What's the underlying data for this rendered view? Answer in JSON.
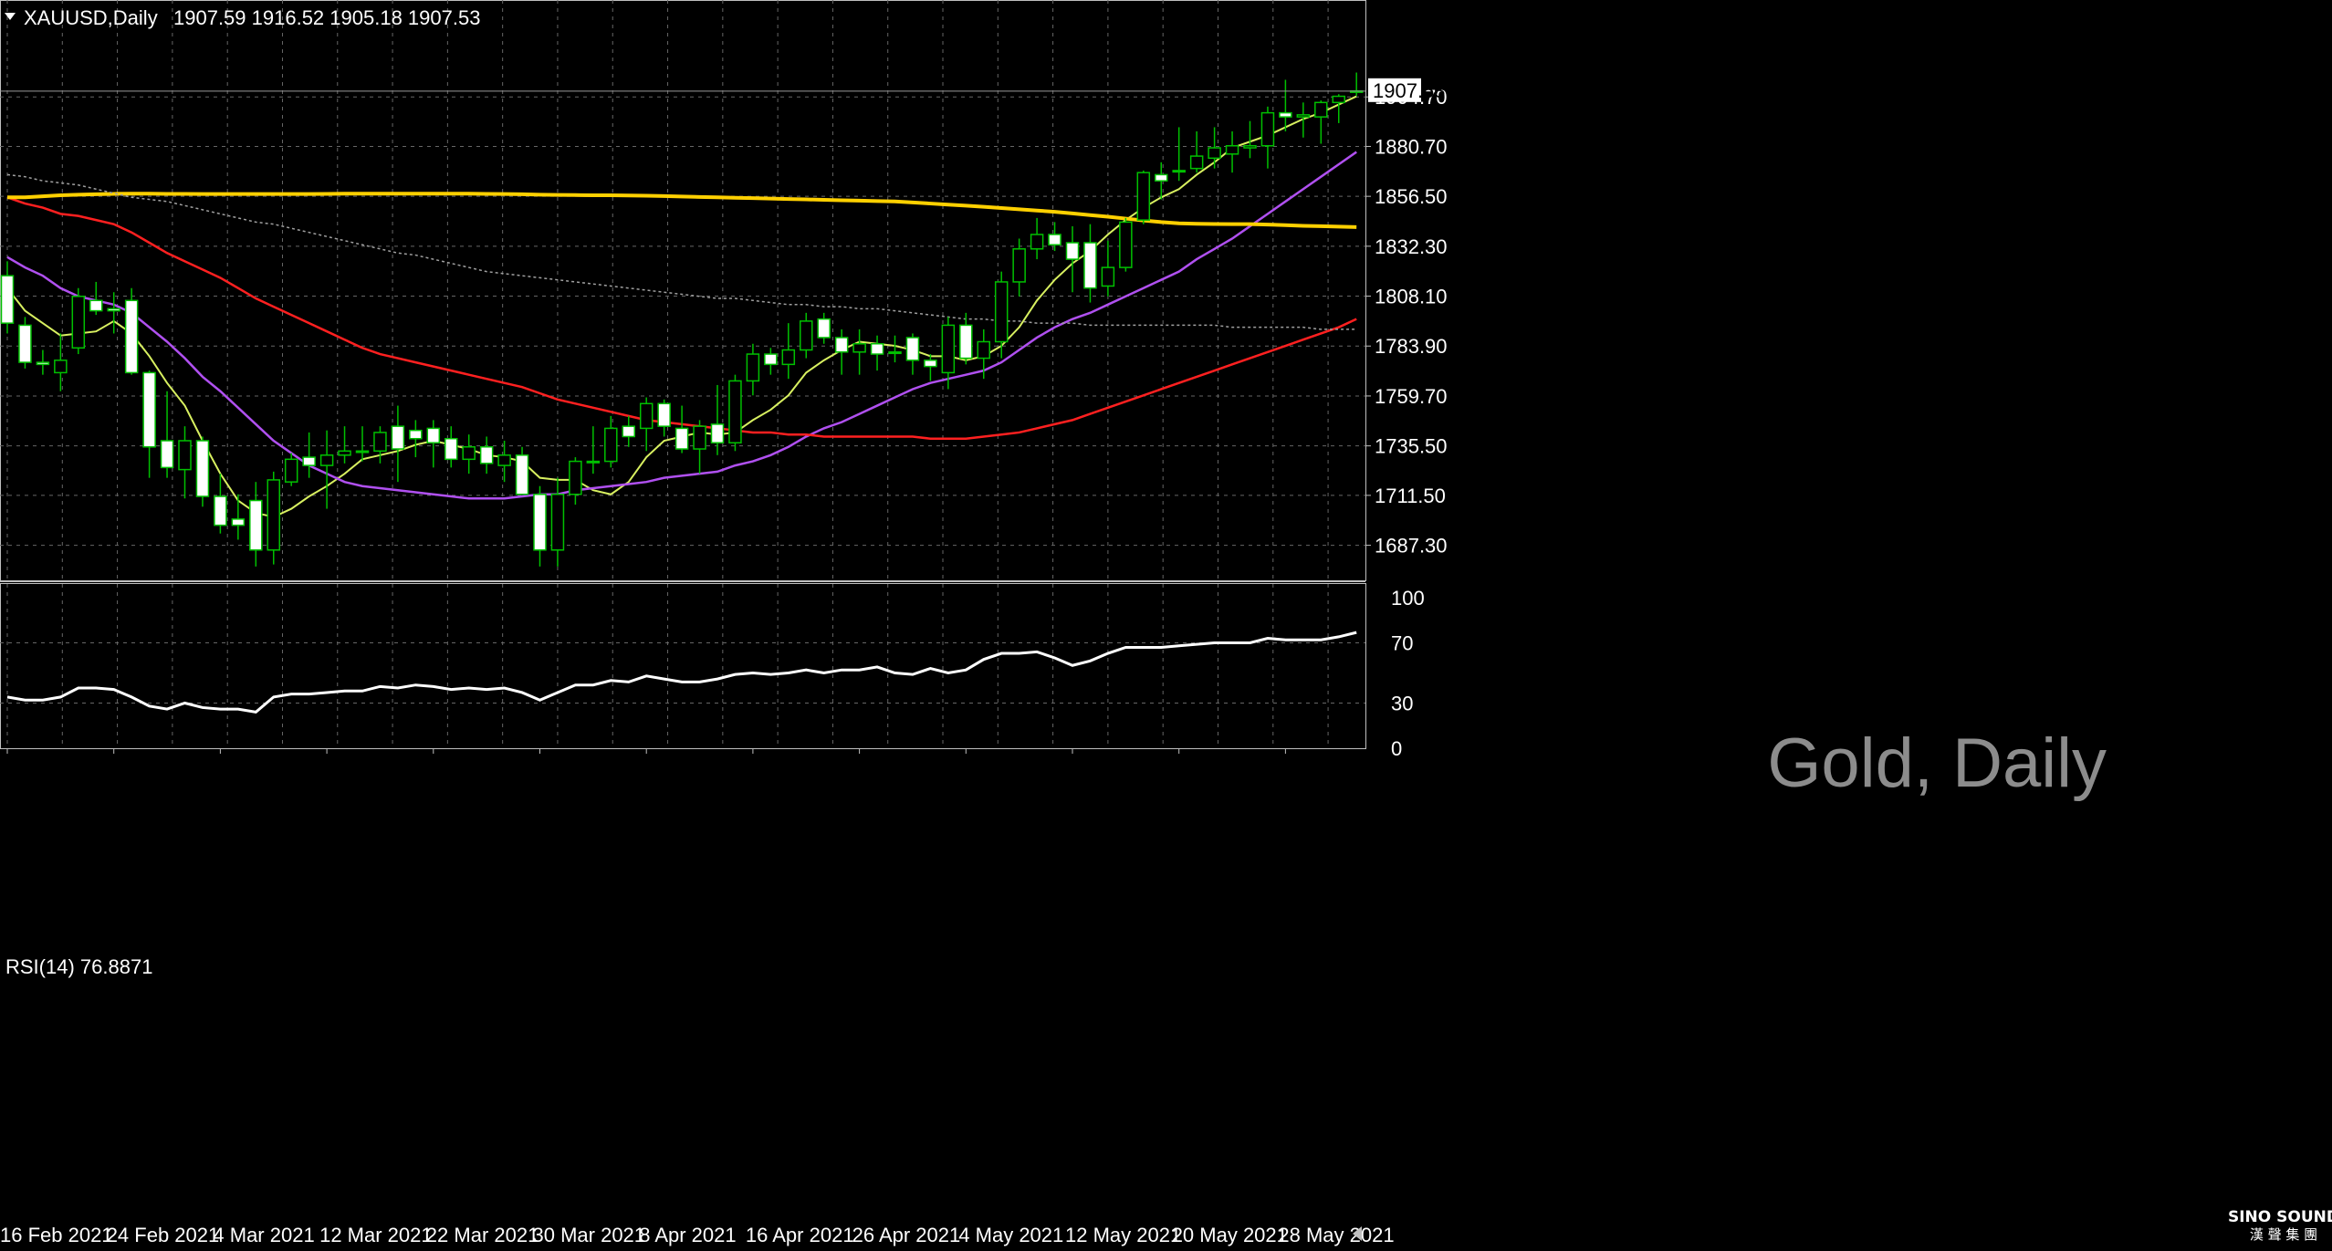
{
  "header": {
    "symbol": "XAUUSD,Daily",
    "ohlc": "1907.59 1916.52 1905.18 1907.53",
    "watermark": "Gold, Daily"
  },
  "rsi_panel": {
    "label": "RSI(14) 76.8871"
  },
  "logo": {
    "line1": "SINO SOUND",
    "line2": "漢 聲 集 團"
  },
  "colors": {
    "background": "#000000",
    "grid": "#666666",
    "bull_candle": "#000000",
    "bear_candle": "#ffffff",
    "candle_outline": "#00c000",
    "ma_5": "#d8f060",
    "ma_20": "#b050f0",
    "ma_50": "#ff2020",
    "ma_100": "#ffd000",
    "ma_200": "#a0a0a0",
    "rsi_line": "#ffffff"
  },
  "chart_data": [
    {
      "type": "candlestick",
      "title": "XAUUSD,Daily",
      "current_price": 1907.53,
      "ylim": [
        1670.3,
        1927.8
      ],
      "y_ticks": [
        1687.3,
        1711.5,
        1735.5,
        1759.7,
        1783.9,
        1808.1,
        1832.3,
        1856.5,
        1880.7,
        1904.7
      ],
      "y_tick_labels": [
        "1687.30",
        "1711.50",
        "1735.50",
        "1759.70",
        "1783.90",
        "1808.10",
        "1832.30",
        "1856.50",
        "1880.70",
        "1904.70"
      ],
      "x_labels": [
        "16 Feb 2021",
        "24 Feb 2021",
        "4 Mar 2021",
        "12 Mar 2021",
        "22 Mar 2021",
        "30 Mar 2021",
        "8 Apr 2021",
        "16 Apr 2021",
        "26 Apr 2021",
        "4 May 2021",
        "12 May 2021",
        "20 May 2021",
        "28 May 2021"
      ],
      "x_label_index": [
        0,
        6,
        12,
        18,
        24,
        30,
        36,
        42,
        48,
        54,
        60,
        66,
        72
      ],
      "ohlc": [
        {
          "o": 1818,
          "h": 1825,
          "l": 1790,
          "c": 1795
        },
        {
          "o": 1794,
          "h": 1798,
          "l": 1773,
          "c": 1776
        },
        {
          "o": 1776,
          "h": 1782,
          "l": 1770,
          "c": 1775
        },
        {
          "o": 1771,
          "h": 1790,
          "l": 1762,
          "c": 1777
        },
        {
          "o": 1783,
          "h": 1812,
          "l": 1780,
          "c": 1808
        },
        {
          "o": 1806,
          "h": 1815,
          "l": 1799,
          "c": 1801
        },
        {
          "o": 1802,
          "h": 1810,
          "l": 1790,
          "c": 1801
        },
        {
          "o": 1806,
          "h": 1812,
          "l": 1770,
          "c": 1771
        },
        {
          "o": 1771,
          "h": 1772,
          "l": 1720,
          "c": 1735
        },
        {
          "o": 1738,
          "h": 1762,
          "l": 1720,
          "c": 1725
        },
        {
          "o": 1724,
          "h": 1745,
          "l": 1710,
          "c": 1738
        },
        {
          "o": 1738,
          "h": 1740,
          "l": 1706,
          "c": 1711
        },
        {
          "o": 1711,
          "h": 1722,
          "l": 1693,
          "c": 1697
        },
        {
          "o": 1700,
          "h": 1712,
          "l": 1690,
          "c": 1697
        },
        {
          "o": 1709,
          "h": 1718,
          "l": 1677,
          "c": 1685
        },
        {
          "o": 1685,
          "h": 1723,
          "l": 1678,
          "c": 1719
        },
        {
          "o": 1718,
          "h": 1732,
          "l": 1716,
          "c": 1729
        },
        {
          "o": 1730,
          "h": 1742,
          "l": 1720,
          "c": 1726
        },
        {
          "o": 1726,
          "h": 1743,
          "l": 1705,
          "c": 1731
        },
        {
          "o": 1731,
          "h": 1745,
          "l": 1727,
          "c": 1733
        },
        {
          "o": 1733,
          "h": 1745,
          "l": 1728,
          "c": 1733
        },
        {
          "o": 1733,
          "h": 1745,
          "l": 1727,
          "c": 1742
        },
        {
          "o": 1745,
          "h": 1755,
          "l": 1718,
          "c": 1734
        },
        {
          "o": 1743,
          "h": 1748,
          "l": 1730,
          "c": 1739
        },
        {
          "o": 1744,
          "h": 1748,
          "l": 1725,
          "c": 1737
        },
        {
          "o": 1739,
          "h": 1745,
          "l": 1725,
          "c": 1729
        },
        {
          "o": 1729,
          "h": 1741,
          "l": 1722,
          "c": 1735
        },
        {
          "o": 1735,
          "h": 1740,
          "l": 1722,
          "c": 1727
        },
        {
          "o": 1726,
          "h": 1738,
          "l": 1718,
          "c": 1731
        },
        {
          "o": 1731,
          "h": 1735,
          "l": 1712,
          "c": 1712
        },
        {
          "o": 1712,
          "h": 1716,
          "l": 1677,
          "c": 1685
        },
        {
          "o": 1685,
          "h": 1720,
          "l": 1677,
          "c": 1712
        },
        {
          "o": 1712,
          "h": 1730,
          "l": 1707,
          "c": 1728
        },
        {
          "o": 1728,
          "h": 1745,
          "l": 1722,
          "c": 1728
        },
        {
          "o": 1728,
          "h": 1750,
          "l": 1725,
          "c": 1744
        },
        {
          "o": 1745,
          "h": 1750,
          "l": 1735,
          "c": 1740
        },
        {
          "o": 1744,
          "h": 1759,
          "l": 1733,
          "c": 1756
        },
        {
          "o": 1756,
          "h": 1758,
          "l": 1740,
          "c": 1745
        },
        {
          "o": 1744,
          "h": 1755,
          "l": 1732,
          "c": 1734
        },
        {
          "o": 1734,
          "h": 1748,
          "l": 1722,
          "c": 1745
        },
        {
          "o": 1746,
          "h": 1765,
          "l": 1731,
          "c": 1737
        },
        {
          "o": 1737,
          "h": 1770,
          "l": 1733,
          "c": 1767
        },
        {
          "o": 1767,
          "h": 1785,
          "l": 1760,
          "c": 1780
        },
        {
          "o": 1780,
          "h": 1783,
          "l": 1770,
          "c": 1775
        },
        {
          "o": 1775,
          "h": 1795,
          "l": 1768,
          "c": 1782
        },
        {
          "o": 1782,
          "h": 1800,
          "l": 1778,
          "c": 1796
        },
        {
          "o": 1797,
          "h": 1800,
          "l": 1785,
          "c": 1788
        },
        {
          "o": 1788,
          "h": 1792,
          "l": 1770,
          "c": 1781
        },
        {
          "o": 1781,
          "h": 1792,
          "l": 1770,
          "c": 1785
        },
        {
          "o": 1785,
          "h": 1789,
          "l": 1772,
          "c": 1780
        },
        {
          "o": 1781,
          "h": 1789,
          "l": 1776,
          "c": 1781
        },
        {
          "o": 1788,
          "h": 1790,
          "l": 1770,
          "c": 1777
        },
        {
          "o": 1777,
          "h": 1780,
          "l": 1767,
          "c": 1774
        },
        {
          "o": 1771,
          "h": 1798,
          "l": 1763,
          "c": 1794
        },
        {
          "o": 1794,
          "h": 1800,
          "l": 1775,
          "c": 1778
        },
        {
          "o": 1778,
          "h": 1792,
          "l": 1768,
          "c": 1786
        },
        {
          "o": 1786,
          "h": 1820,
          "l": 1778,
          "c": 1815
        },
        {
          "o": 1815,
          "h": 1836,
          "l": 1808,
          "c": 1831
        },
        {
          "o": 1831,
          "h": 1846,
          "l": 1826,
          "c": 1838
        },
        {
          "o": 1838,
          "h": 1844,
          "l": 1830,
          "c": 1833
        },
        {
          "o": 1834,
          "h": 1842,
          "l": 1810,
          "c": 1826
        },
        {
          "o": 1834,
          "h": 1843,
          "l": 1805,
          "c": 1812
        },
        {
          "o": 1813,
          "h": 1835,
          "l": 1808,
          "c": 1822
        },
        {
          "o": 1822,
          "h": 1846,
          "l": 1820,
          "c": 1844
        },
        {
          "o": 1845,
          "h": 1869,
          "l": 1843,
          "c": 1868
        },
        {
          "o": 1867,
          "h": 1873,
          "l": 1855,
          "c": 1864
        },
        {
          "o": 1869,
          "h": 1890,
          "l": 1864,
          "c": 1869
        },
        {
          "o": 1870,
          "h": 1888,
          "l": 1868,
          "c": 1876
        },
        {
          "o": 1875,
          "h": 1890,
          "l": 1870,
          "c": 1880
        },
        {
          "o": 1877,
          "h": 1888,
          "l": 1868,
          "c": 1881
        },
        {
          "o": 1880,
          "h": 1893,
          "l": 1875,
          "c": 1881
        },
        {
          "o": 1881,
          "h": 1900,
          "l": 1870,
          "c": 1897
        },
        {
          "o": 1897,
          "h": 1913,
          "l": 1888,
          "c": 1895
        },
        {
          "o": 1895,
          "h": 1902,
          "l": 1885,
          "c": 1896
        },
        {
          "o": 1895,
          "h": 1903,
          "l": 1882,
          "c": 1902
        },
        {
          "o": 1902,
          "h": 1906,
          "l": 1892,
          "c": 1905
        },
        {
          "o": 1907.59,
          "h": 1916.52,
          "l": 1905.18,
          "c": 1907.53
        }
      ],
      "ma_lines": [
        {
          "key": "ma_5",
          "values": [
            1812,
            1801,
            1795,
            1789,
            1790,
            1791,
            1796,
            1790,
            1779,
            1766,
            1755,
            1738,
            1722,
            1709,
            1703,
            1701,
            1705,
            1711,
            1716,
            1722,
            1729,
            1731,
            1733,
            1736,
            1738,
            1736,
            1734,
            1731,
            1730,
            1728,
            1720,
            1719,
            1719,
            1714,
            1712,
            1718,
            1730,
            1738,
            1740,
            1742,
            1741,
            1742,
            1748,
            1753,
            1760,
            1771,
            1777,
            1782,
            1786,
            1785,
            1784,
            1782,
            1779,
            1779,
            1777,
            1779,
            1784,
            1793,
            1806,
            1816,
            1824,
            1830,
            1838,
            1845,
            1851,
            1856,
            1860,
            1867,
            1873,
            1880,
            1883,
            1886,
            1890,
            1894,
            1897,
            1901,
            1905
          ]
        },
        {
          "key": "ma_20",
          "values": [
            1827,
            1822,
            1818,
            1812,
            1808,
            1806,
            1804,
            1800,
            1793,
            1786,
            1778,
            1769,
            1762,
            1754,
            1746,
            1738,
            1732,
            1726,
            1722,
            1718,
            1716,
            1715,
            1714,
            1713,
            1712,
            1711,
            1710,
            1710,
            1710,
            1711,
            1712,
            1712,
            1714,
            1715,
            1716,
            1717,
            1718,
            1720,
            1721,
            1722,
            1723,
            1726,
            1728,
            1731,
            1735,
            1740,
            1744,
            1747,
            1751,
            1755,
            1759,
            1763,
            1766,
            1768,
            1770,
            1772,
            1776,
            1782,
            1788,
            1793,
            1797,
            1800,
            1804,
            1808,
            1812,
            1816,
            1820,
            1826,
            1831,
            1836,
            1842,
            1848,
            1854,
            1860,
            1866,
            1872,
            1878
          ]
        },
        {
          "key": "ma_50",
          "values": [
            1856,
            1853,
            1851,
            1848,
            1847,
            1845,
            1843,
            1839,
            1834,
            1829,
            1825,
            1821,
            1817,
            1812,
            1807,
            1803,
            1799,
            1795,
            1791,
            1787,
            1783,
            1780,
            1778,
            1776,
            1774,
            1772,
            1770,
            1768,
            1766,
            1764,
            1761,
            1758,
            1756,
            1754,
            1752,
            1750,
            1748,
            1747,
            1746,
            1745,
            1744,
            1743,
            1742,
            1742,
            1741,
            1741,
            1740,
            1740,
            1740,
            1740,
            1740,
            1740,
            1739,
            1739,
            1739,
            1740,
            1741,
            1742,
            1744,
            1746,
            1748,
            1751,
            1754,
            1757,
            1760,
            1763,
            1766,
            1769,
            1772,
            1775,
            1778,
            1781,
            1784,
            1787,
            1790,
            1793,
            1797
          ]
        },
        {
          "key": "ma_100",
          "values": [
            1856,
            1856,
            1856.5,
            1857,
            1857.3,
            1857.5,
            1857.7,
            1857.8,
            1857.8,
            1857.7,
            1857.7,
            1857.6,
            1857.6,
            1857.6,
            1857.6,
            1857.6,
            1857.6,
            1857.6,
            1857.7,
            1857.8,
            1857.8,
            1857.8,
            1857.8,
            1857.8,
            1857.8,
            1857.8,
            1857.8,
            1857.7,
            1857.6,
            1857.5,
            1857.3,
            1857.2,
            1857.1,
            1857,
            1857,
            1856.9,
            1856.8,
            1856.6,
            1856.4,
            1856.2,
            1856,
            1855.8,
            1855.6,
            1855.4,
            1855.2,
            1855,
            1854.8,
            1854.6,
            1854.4,
            1854.2,
            1854,
            1853.5,
            1853,
            1852.5,
            1852,
            1851.4,
            1850.8,
            1850.2,
            1849.6,
            1849,
            1848.2,
            1847.4,
            1846.6,
            1845.7,
            1844.8,
            1844,
            1843.4,
            1843.2,
            1843.1,
            1843,
            1843,
            1842.8,
            1842.5,
            1842.2,
            1842,
            1841.8,
            1841.6
          ]
        },
        {
          "key": "ma_200",
          "values": [
            1867,
            1866,
            1864,
            1863,
            1862,
            1860,
            1858,
            1856,
            1855,
            1854,
            1852,
            1850,
            1848,
            1846,
            1844,
            1843,
            1841,
            1839,
            1837,
            1835,
            1833,
            1831,
            1829,
            1828,
            1826,
            1824,
            1822,
            1820,
            1819,
            1818,
            1817,
            1816,
            1815,
            1814,
            1813,
            1812,
            1811,
            1810,
            1809,
            1808,
            1807,
            1807,
            1806,
            1805,
            1804,
            1804,
            1803,
            1803,
            1802,
            1802,
            1801,
            1800,
            1799,
            1798,
            1797,
            1797,
            1796,
            1796,
            1795,
            1795,
            1795,
            1794,
            1794,
            1794,
            1794,
            1794,
            1794,
            1794,
            1794,
            1793,
            1793,
            1793,
            1793,
            1793,
            1792,
            1792,
            1792
          ]
        }
      ]
    },
    {
      "type": "line",
      "title": "RSI(14) 76.8871",
      "ylim": [
        0,
        100
      ],
      "y_ticks": [
        0,
        30,
        70,
        100
      ],
      "y_tick_labels": [
        "0",
        "30",
        "70",
        "100"
      ],
      "series": [
        {
          "values": [
            34,
            32,
            32,
            34,
            40,
            40,
            39,
            34,
            28,
            26,
            30,
            27,
            26,
            26,
            24,
            34,
            36,
            36,
            37,
            38,
            38,
            41,
            40,
            42,
            41,
            39,
            40,
            39,
            40,
            37,
            32,
            37,
            42,
            42,
            45,
            44,
            48,
            46,
            44,
            44,
            46,
            49,
            50,
            49,
            50,
            52,
            50,
            52,
            52,
            54,
            50,
            49,
            53,
            50,
            52,
            59,
            63,
            63,
            64,
            60,
            55,
            58,
            63,
            67,
            67,
            67,
            68,
            69,
            70,
            70,
            70,
            73,
            72,
            72,
            72,
            74,
            76.8871
          ]
        }
      ]
    }
  ]
}
